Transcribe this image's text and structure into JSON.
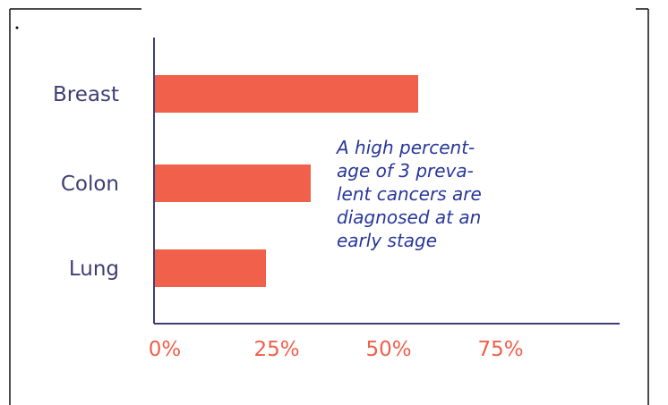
{
  "annotation_lines": [
    "A high percent-",
    "age of 3 preva-",
    "lent cancers are",
    "diagnosed at an",
    "early stage"
  ],
  "colors": {
    "bar": "#f0604a",
    "axis": "#3d3f73",
    "category_text": "#3d3f73",
    "tick_text": "#f0604a",
    "annotation_text": "#28379b"
  },
  "chart_data": {
    "type": "bar",
    "orientation": "horizontal",
    "categories": [
      "Breast",
      "Colon",
      "Lung"
    ],
    "values": [
      59,
      35,
      25
    ],
    "unit": "%",
    "xlim": [
      0,
      100
    ],
    "xticks": [
      0,
      25,
      50,
      75
    ],
    "xtick_labels": [
      "0%",
      "25%",
      "50%",
      "75%"
    ],
    "title": "",
    "xlabel": "",
    "ylabel": "",
    "grid": false,
    "legend": "none"
  }
}
